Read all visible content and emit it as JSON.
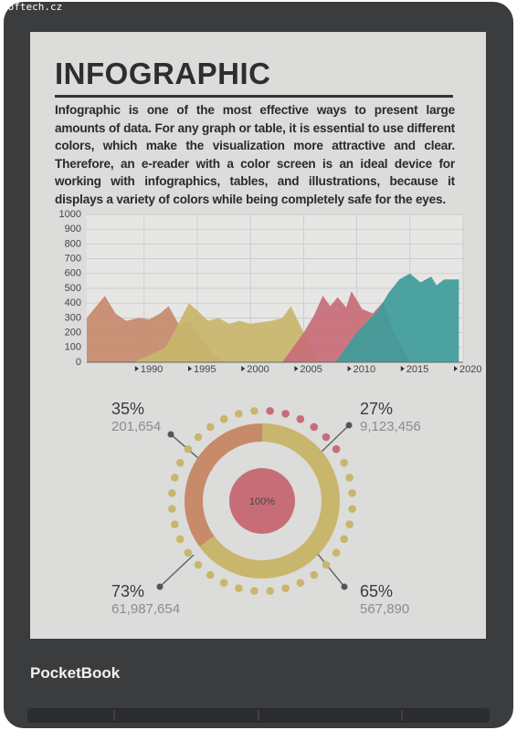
{
  "watermark": "Softech.cz",
  "brand": "PocketBook",
  "header": {
    "title": "INFOGRAPHIC",
    "text": "Infographic is one of the most effective ways to present large amounts of data. For any graph or table, it is essential to use different colors, which make the visualization more attractive and clear. Therefore, an e-reader with a color screen is an ideal device for working with infographics, tables, and illustrations, because it displays a variety of colors while being completely safe for the eyes."
  },
  "chart_data": {
    "type": "area",
    "xlim": [
      1984.6,
      2020
    ],
    "ylim": [
      0,
      1000
    ],
    "xticks": [
      1990,
      1995,
      2000,
      2005,
      2010,
      2015,
      2020
    ],
    "yticks": [
      0,
      100,
      200,
      300,
      400,
      500,
      600,
      700,
      800,
      900,
      1000
    ],
    "grid": true,
    "series": [
      {
        "color": "#c78a6b",
        "x": [
          1984.6,
          1985.5,
          1986.3,
          1987.3,
          1988.3,
          1989.5,
          1990.5,
          1991.5,
          1992.3,
          1993.3,
          1994.3,
          1995.5,
          1996.5,
          1997.5
        ],
        "values": [
          300,
          380,
          450,
          330,
          280,
          300,
          290,
          330,
          380,
          250,
          280,
          150,
          50,
          0
        ]
      },
      {
        "color": "#c8b66c",
        "x": [
          1989,
          1992,
          1993.5,
          1994.2,
          1995,
          1996,
          1997,
          1998,
          1999,
          2000,
          2001,
          2002,
          2003,
          2003.8,
          2005,
          2006.5
        ],
        "values": [
          0,
          100,
          300,
          400,
          350,
          280,
          300,
          260,
          280,
          260,
          270,
          280,
          300,
          380,
          200,
          0
        ]
      },
      {
        "color": "#c76d77",
        "x": [
          2003,
          2005,
          2006,
          2006.8,
          2007.5,
          2008.2,
          2009,
          2009.5,
          2010.5,
          2011.5,
          2012.5,
          2013.5,
          2015
        ],
        "values": [
          0,
          200,
          320,
          450,
          380,
          440,
          370,
          480,
          360,
          330,
          410,
          200,
          0
        ]
      },
      {
        "color": "#3e9c9b",
        "x": [
          2008,
          2010,
          2012,
          2013,
          2014,
          2015,
          2016,
          2017,
          2017.5,
          2018.2,
          2019,
          2019.6
        ],
        "values": [
          0,
          200,
          350,
          470,
          560,
          600,
          540,
          580,
          520,
          560,
          560,
          560
        ]
      }
    ]
  },
  "stats": [
    {
      "percent": "35%",
      "number": "201,654"
    },
    {
      "percent": "27%",
      "number": "9,123,456"
    },
    {
      "percent": "73%",
      "number": "61,987,654"
    },
    {
      "percent": "65%",
      "number": "567,890"
    }
  ],
  "center": "100%"
}
